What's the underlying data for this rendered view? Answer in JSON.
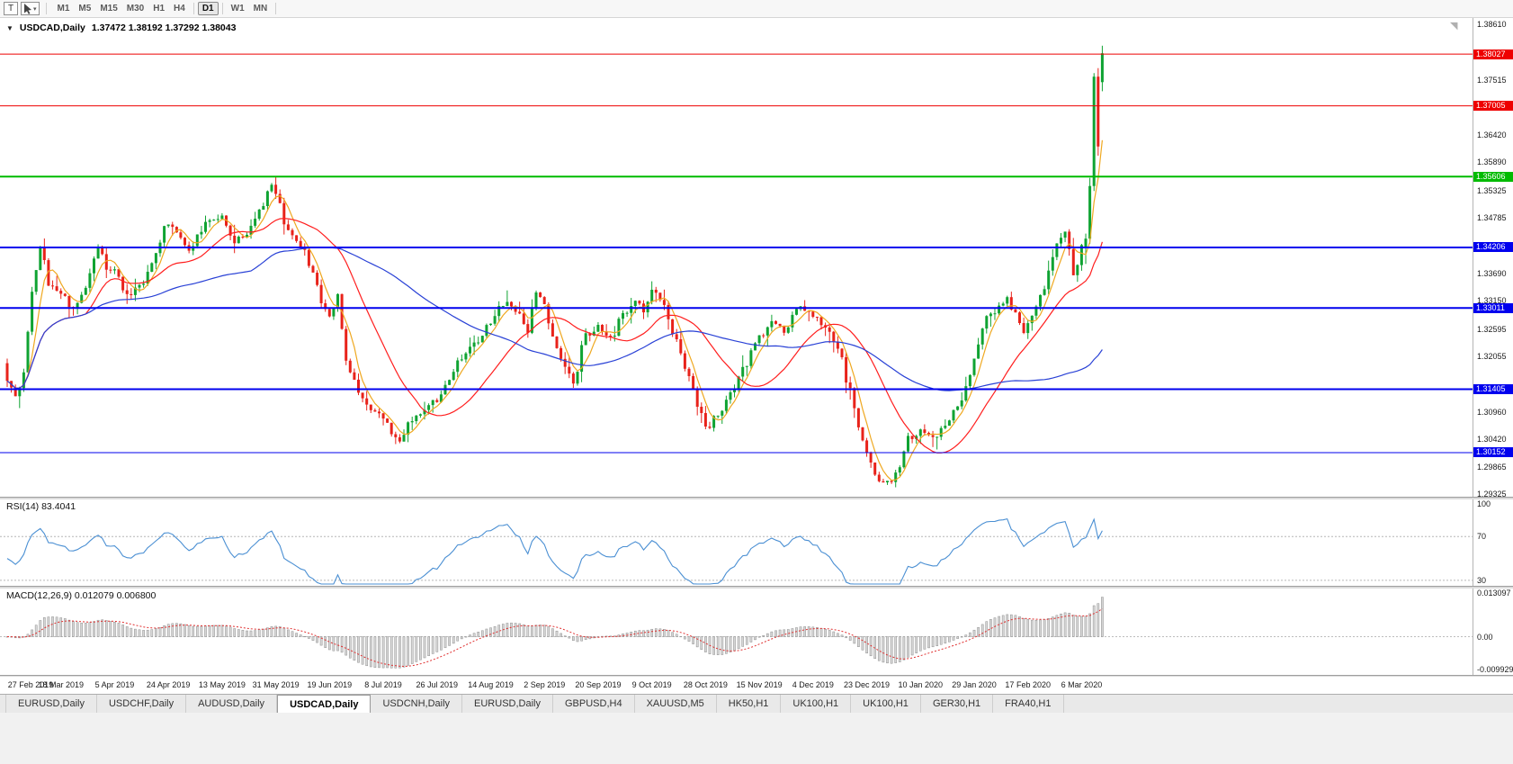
{
  "toolbar": {
    "text_tool_label": "T",
    "timeframes": [
      {
        "label": "M1",
        "active": false
      },
      {
        "label": "M5",
        "active": false
      },
      {
        "label": "M15",
        "active": false
      },
      {
        "label": "M30",
        "active": false
      },
      {
        "label": "H1",
        "active": false
      },
      {
        "label": "H4",
        "active": false
      },
      {
        "label": "D1",
        "active": true
      },
      {
        "label": "W1",
        "active": false
      },
      {
        "label": "MN",
        "active": false
      }
    ]
  },
  "chart": {
    "title_symbol": "USDCAD,Daily",
    "title_ohlc": "1.37472 1.38192 1.37292 1.38043"
  },
  "rsi": {
    "label": "RSI(14) 83.4041",
    "color": "#4a8fd3",
    "axis": [
      {
        "label": "100",
        "v": 100,
        "line": false
      },
      {
        "label": "70",
        "v": 70,
        "line": true
      },
      {
        "label": "30",
        "v": 30,
        "line": true
      }
    ]
  },
  "macd": {
    "label": "MACD(12,26,9) 0.012079 0.006800",
    "axis": [
      {
        "label": "0.013097",
        "v": 0.013097,
        "line": false
      },
      {
        "label": "0.00",
        "v": 0,
        "line": true
      },
      {
        "label": "-0.009929",
        "v": -0.009929,
        "line": false
      }
    ]
  },
  "tabs": [
    {
      "label": "EURUSD,Daily",
      "active": false
    },
    {
      "label": "USDCHF,Daily",
      "active": false
    },
    {
      "label": "AUDUSD,Daily",
      "active": false
    },
    {
      "label": "USDCAD,Daily",
      "active": true
    },
    {
      "label": "USDCNH,Daily",
      "active": false
    },
    {
      "label": "EURUSD,Daily",
      "active": false
    },
    {
      "label": "GBPUSD,H4",
      "active": false
    },
    {
      "label": "XAUUSD,M5",
      "active": false
    },
    {
      "label": "HK50,H1",
      "active": false
    },
    {
      "label": "UK100,H1",
      "active": false
    },
    {
      "label": "UK100,H1",
      "active": false
    },
    {
      "label": "GER30,H1",
      "active": false
    },
    {
      "label": "FRA40,H1",
      "active": false
    }
  ],
  "chart_data": {
    "type": "candlestick",
    "symbol": "USDCAD",
    "timeframe": "Daily",
    "current_bar": {
      "open": 1.37472,
      "high": 1.38192,
      "low": 1.37292,
      "close": 1.38043
    },
    "price_axis": {
      "top": 1.3874,
      "bottom": 1.2928,
      "ticks": [
        1.3861,
        1.37515,
        1.3642,
        1.3589,
        1.35325,
        1.34785,
        1.3369,
        1.3315,
        1.32595,
        1.32055,
        1.3096,
        1.3042,
        1.29865,
        1.29325
      ]
    },
    "hlines": [
      {
        "value": 1.38027,
        "color": "#ee0000",
        "width": 1
      },
      {
        "value": 1.37005,
        "color": "#ee0000",
        "width": 1
      },
      {
        "value": 1.35606,
        "color": "#00bb00",
        "width": 2
      },
      {
        "value": 1.34206,
        "color": "#0000ee",
        "width": 2
      },
      {
        "value": 1.33011,
        "color": "#0000ee",
        "width": 2
      },
      {
        "value": 1.31405,
        "color": "#0000ee",
        "width": 2
      },
      {
        "value": 1.30152,
        "color": "#0000ee",
        "width": 1
      }
    ],
    "dates": [
      "27 Feb 2019",
      "18 Mar 2019",
      "5 Apr 2019",
      "24 Apr 2019",
      "13 May 2019",
      "31 May 2019",
      "19 Jun 2019",
      "8 Jul 2019",
      "26 Jul 2019",
      "14 Aug 2019",
      "2 Sep 2019",
      "20 Sep 2019",
      "9 Oct 2019",
      "28 Oct 2019",
      "15 Nov 2019",
      "4 Dec 2019",
      "23 Dec 2019",
      "10 Jan 2020",
      "29 Jan 2020",
      "17 Feb 2020",
      "6 Mar 2020"
    ],
    "bars_per_label": 13,
    "n_candles": 266,
    "anchors": [
      [
        0,
        1.3155
      ],
      [
        2,
        1.3132
      ],
      [
        4,
        1.3168
      ],
      [
        6,
        1.3335
      ],
      [
        8,
        1.3425
      ],
      [
        10,
        1.3352
      ],
      [
        13,
        1.3335
      ],
      [
        16,
        1.3302
      ],
      [
        19,
        1.3342
      ],
      [
        22,
        1.3425
      ],
      [
        24,
        1.3382
      ],
      [
        26,
        1.3375
      ],
      [
        29,
        1.3322
      ],
      [
        32,
        1.3342
      ],
      [
        35,
        1.3392
      ],
      [
        39,
        1.3472
      ],
      [
        41,
        1.3448
      ],
      [
        44,
        1.3412
      ],
      [
        46,
        1.3448
      ],
      [
        49,
        1.3472
      ],
      [
        52,
        1.3478
      ],
      [
        55,
        1.3436
      ],
      [
        58,
        1.3446
      ],
      [
        61,
        1.3496
      ],
      [
        64,
        1.3544
      ],
      [
        65,
        1.3522
      ],
      [
        68,
        1.3452
      ],
      [
        71,
        1.3428
      ],
      [
        74,
        1.3372
      ],
      [
        76,
        1.3312
      ],
      [
        78,
        1.3288
      ],
      [
        80,
        1.3322
      ],
      [
        82,
        1.3202
      ],
      [
        84,
        1.3152
      ],
      [
        86,
        1.3122
      ],
      [
        89,
        1.3098
      ],
      [
        91,
        1.3078
      ],
      [
        93,
        1.3058
      ],
      [
        95,
        1.3042
      ],
      [
        97,
        1.3072
      ],
      [
        100,
        1.3088
      ],
      [
        102,
        1.3108
      ],
      [
        104,
        1.3122
      ],
      [
        107,
        1.3162
      ],
      [
        110,
        1.3202
      ],
      [
        113,
        1.3232
      ],
      [
        117,
        1.3272
      ],
      [
        120,
        1.3312
      ],
      [
        123,
        1.3292
      ],
      [
        126,
        1.3258
      ],
      [
        128,
        1.3332
      ],
      [
        130,
        1.3312
      ],
      [
        132,
        1.3238
      ],
      [
        135,
        1.3182
      ],
      [
        137,
        1.3158
      ],
      [
        140,
        1.3248
      ],
      [
        143,
        1.3262
      ],
      [
        146,
        1.3238
      ],
      [
        149,
        1.3288
      ],
      [
        152,
        1.3318
      ],
      [
        154,
        1.3292
      ],
      [
        156,
        1.3332
      ],
      [
        159,
        1.3302
      ],
      [
        162,
        1.3232
      ],
      [
        165,
        1.3162
      ],
      [
        167,
        1.3112
      ],
      [
        169,
        1.3062
      ],
      [
        172,
        1.3088
      ],
      [
        175,
        1.3132
      ],
      [
        178,
        1.3182
      ],
      [
        182,
        1.3248
      ],
      [
        185,
        1.3272
      ],
      [
        188,
        1.3258
      ],
      [
        191,
        1.3302
      ],
      [
        195,
        1.3288
      ],
      [
        198,
        1.3258
      ],
      [
        201,
        1.3218
      ],
      [
        204,
        1.3142
      ],
      [
        206,
        1.3072
      ],
      [
        208,
        1.3008
      ],
      [
        211,
        1.2962
      ],
      [
        214,
        1.2958
      ],
      [
        216,
        1.2992
      ],
      [
        218,
        1.3042
      ],
      [
        221,
        1.3058
      ],
      [
        224,
        1.3042
      ],
      [
        227,
        1.3075
      ],
      [
        230,
        1.3108
      ],
      [
        232,
        1.3142
      ],
      [
        234,
        1.3202
      ],
      [
        237,
        1.3282
      ],
      [
        240,
        1.3302
      ],
      [
        242,
        1.3316
      ],
      [
        244,
        1.3288
      ],
      [
        246,
        1.3258
      ],
      [
        247,
        1.3268
      ],
      [
        249,
        1.3302
      ],
      [
        251,
        1.3342
      ],
      [
        253,
        1.3408
      ],
      [
        255,
        1.3442
      ],
      [
        256,
        1.3455
      ],
      [
        257,
        1.3422
      ],
      [
        258,
        1.3368
      ],
      [
        259,
        1.3382
      ],
      [
        260,
        1.3418
      ]
    ],
    "final_candles": [
      {
        "o": 1.342,
        "h": 1.3448,
        "l": 1.3388,
        "c": 1.3438
      },
      {
        "o": 1.3438,
        "h": 1.3558,
        "l": 1.3428,
        "c": 1.3542
      },
      {
        "o": 1.3542,
        "h": 1.3765,
        "l": 1.3532,
        "c": 1.3758
      },
      {
        "o": 1.3758,
        "h": 1.3775,
        "l": 1.3602,
        "c": 1.362
      },
      {
        "o": 1.37472,
        "h": 1.38192,
        "l": 1.37292,
        "c": 1.38043
      }
    ],
    "moving_averages": [
      {
        "period": 5,
        "color": "#efa820"
      },
      {
        "period": 20,
        "color": "#ff1e1e"
      },
      {
        "period": 60,
        "color": "#2941d6"
      }
    ],
    "indicators": {
      "rsi": {
        "period": 14,
        "current": 83.4041,
        "levels": [
          100,
          70,
          30
        ]
      },
      "macd": {
        "fast": 12,
        "slow": 26,
        "signal": 9,
        "current": 0.012079,
        "signal_current": 0.0068,
        "axis_top": 0.013097,
        "axis_bottom": -0.009929
      }
    },
    "colors": {
      "up": "#0fa332",
      "down": "#e8221a",
      "background": "#ffffff"
    }
  }
}
